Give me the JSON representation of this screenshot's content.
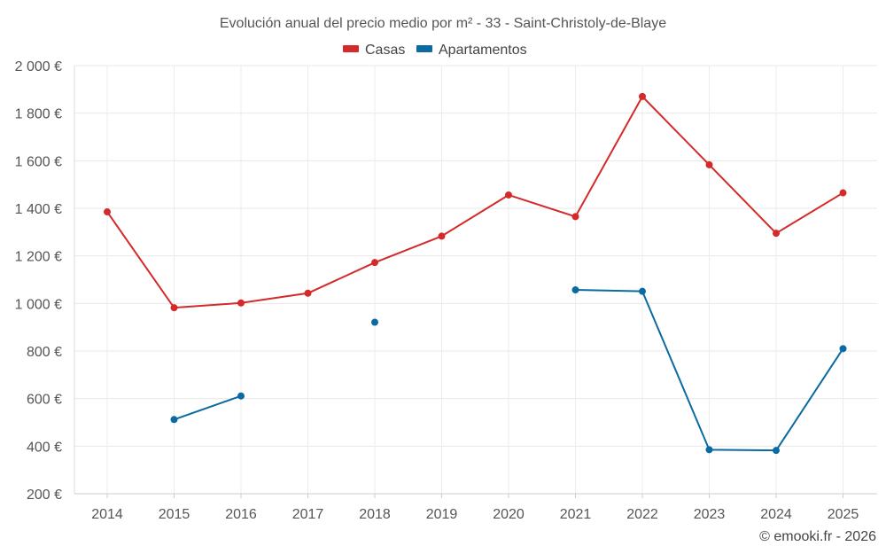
{
  "chart_data": {
    "type": "line",
    "title": "Evolución anual del precio medio por m² - 33 - Saint-Christoly-de-Blaye",
    "categories": [
      "2014",
      "2015",
      "2016",
      "2017",
      "2018",
      "2019",
      "2020",
      "2021",
      "2022",
      "2023",
      "2024",
      "2025"
    ],
    "ylim": [
      200,
      2000
    ],
    "yticks": [
      200,
      400,
      600,
      800,
      1000,
      1200,
      1400,
      1600,
      1800,
      2000
    ],
    "ytick_labels": [
      "200 €",
      "400 €",
      "600 €",
      "800 €",
      "1 000 €",
      "1 200 €",
      "1 400 €",
      "1 600 €",
      "1 800 €",
      "2 000 €"
    ],
    "grid": true,
    "legend_position": "top-center",
    "series": [
      {
        "name": "Casas",
        "color": "#d42a2a",
        "values": [
          1385,
          982,
          1002,
          1043,
          1172,
          1283,
          1456,
          1365,
          1870,
          1583,
          1295,
          1465
        ]
      },
      {
        "name": "Apartamentos",
        "color": "#0a6aa1",
        "values": [
          null,
          512,
          611,
          null,
          921,
          null,
          null,
          1057,
          1051,
          385,
          382,
          810
        ]
      }
    ]
  },
  "credit": "© emooki.fr - 2026"
}
